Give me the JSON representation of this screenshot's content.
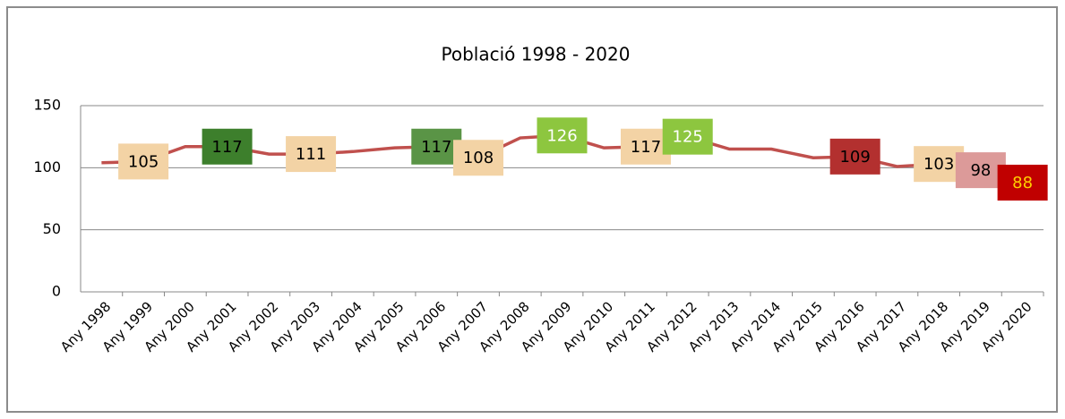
{
  "chart_data": {
    "type": "line",
    "title": "Població 1998 - 2020",
    "categories": [
      "Any 1998",
      "Any 1999",
      "Any 2000",
      "Any 2001",
      "Any 2002",
      "Any 2003",
      "Any 2004",
      "Any 2005",
      "Any 2006",
      "Any 2007",
      "Any 2008",
      "Any 2009",
      "Any 2010",
      "Any 2011",
      "Any 2012",
      "Any 2013",
      "Any 2014",
      "Any 2015",
      "Any 2016",
      "Any 2017",
      "Any 2018",
      "Any 2019",
      "Any 2020"
    ],
    "values": [
      104,
      105,
      117,
      117,
      111,
      111,
      113,
      116,
      117,
      108,
      124,
      126,
      116,
      117,
      125,
      115,
      115,
      108,
      109,
      101,
      103,
      98,
      88
    ],
    "color": "#c0504d",
    "label_colors": [
      null,
      "#f3d3a5",
      null,
      "#3d7f2c",
      null,
      "#f3d3a5",
      null,
      null,
      "#5a9446",
      "#f3d3a5",
      null,
      "#8dc63f",
      null,
      "#f3d3a5",
      "#8dc63f",
      null,
      null,
      null,
      "#b3302f",
      null,
      "#f3d3a5",
      "#dc9a99",
      "#c00000"
    ],
    "label_text_colors": [
      null,
      "#000",
      null,
      "#000",
      null,
      "#000",
      null,
      null,
      "#000",
      "#000",
      null,
      "#fff",
      null,
      "#000",
      "#fff",
      null,
      null,
      null,
      "#000",
      null,
      "#000",
      "#000",
      "#ffd000"
    ],
    "ylim": [
      0,
      150
    ],
    "yticks": [
      0,
      50,
      100,
      150
    ],
    "grid": true
  }
}
